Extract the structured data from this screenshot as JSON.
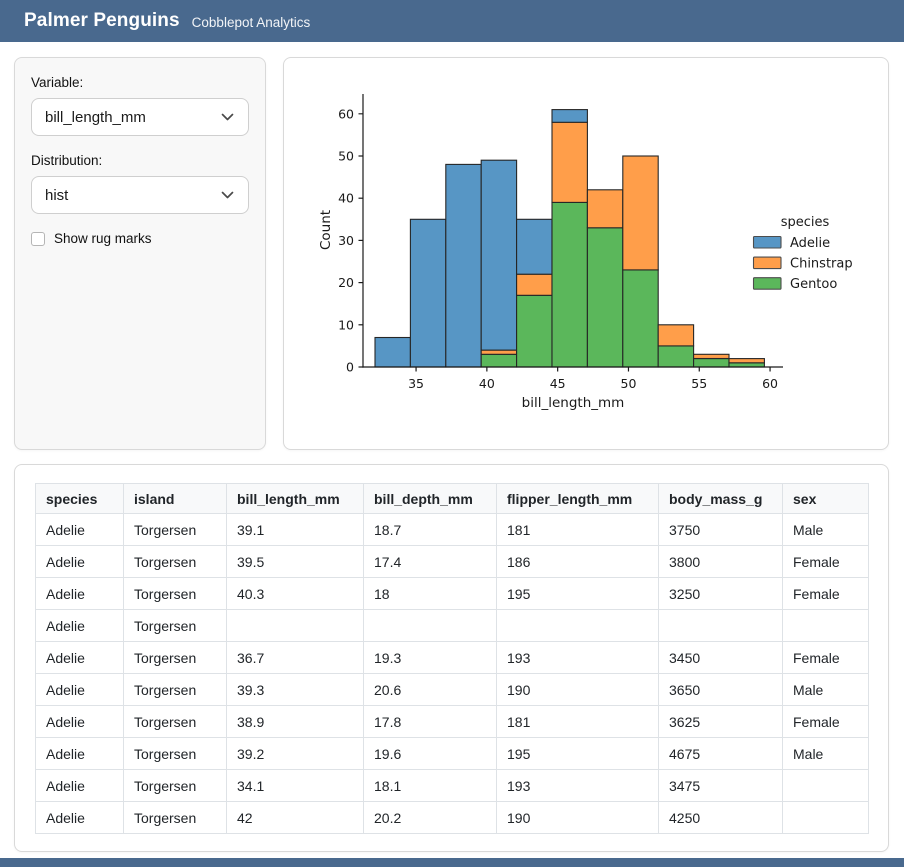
{
  "header": {
    "title": "Palmer Penguins",
    "subtitle": "Cobblepot Analytics"
  },
  "sidebar": {
    "variable": {
      "label": "Variable:",
      "value": "bill_length_mm"
    },
    "distribution": {
      "label": "Distribution:",
      "value": "hist"
    },
    "rug": {
      "label": "Show rug marks",
      "checked": false
    }
  },
  "chart_data": {
    "type": "bar",
    "subtype": "stacked-histogram",
    "xlabel": "bill_length_mm",
    "ylabel": "Count",
    "bins": {
      "start": 32.1,
      "width": 2.5,
      "count": 11
    },
    "x_ticks": [
      35,
      40,
      45,
      50,
      55,
      60
    ],
    "y_ticks": [
      0,
      10,
      20,
      30,
      40,
      50,
      60
    ],
    "ylim": [
      0,
      64.7
    ],
    "series": [
      {
        "name": "Gentoo",
        "color": "#5BB75B",
        "values": [
          0,
          0,
          0,
          3,
          17,
          39,
          33,
          23,
          5,
          2,
          1
        ]
      },
      {
        "name": "Chinstrap",
        "color": "#FF9E4A",
        "values": [
          0,
          0,
          0,
          1,
          5,
          19,
          9,
          27,
          5,
          1,
          1
        ]
      },
      {
        "name": "Adelie",
        "color": "#5796C5",
        "values": [
          7,
          35,
          48,
          45,
          13,
          3,
          0,
          0,
          0,
          0,
          0
        ]
      }
    ],
    "totals": [
      7,
      35,
      48,
      49,
      35,
      61,
      42,
      50,
      10,
      3,
      2
    ],
    "edge_color": "#262626",
    "legend": {
      "title": "species",
      "entries": [
        "Adelie",
        "Chinstrap",
        "Gentoo"
      ],
      "position": "right"
    },
    "grid": false
  },
  "table": {
    "columns": [
      "species",
      "island",
      "bill_length_mm",
      "bill_depth_mm",
      "flipper_length_mm",
      "body_mass_g",
      "sex"
    ],
    "rows": [
      [
        "Adelie",
        "Torgersen",
        "39.1",
        "18.7",
        "181",
        "3750",
        "Male"
      ],
      [
        "Adelie",
        "Torgersen",
        "39.5",
        "17.4",
        "186",
        "3800",
        "Female"
      ],
      [
        "Adelie",
        "Torgersen",
        "40.3",
        "18",
        "195",
        "3250",
        "Female"
      ],
      [
        "Adelie",
        "Torgersen",
        "",
        "",
        "",
        "",
        ""
      ],
      [
        "Adelie",
        "Torgersen",
        "36.7",
        "19.3",
        "193",
        "3450",
        "Female"
      ],
      [
        "Adelie",
        "Torgersen",
        "39.3",
        "20.6",
        "190",
        "3650",
        "Male"
      ],
      [
        "Adelie",
        "Torgersen",
        "38.9",
        "17.8",
        "181",
        "3625",
        "Female"
      ],
      [
        "Adelie",
        "Torgersen",
        "39.2",
        "19.6",
        "195",
        "4675",
        "Male"
      ],
      [
        "Adelie",
        "Torgersen",
        "34.1",
        "18.1",
        "193",
        "3475",
        ""
      ],
      [
        "Adelie",
        "Torgersen",
        "42",
        "20.2",
        "190",
        "4250",
        ""
      ]
    ]
  },
  "colors": {
    "header_bg": "#49698e",
    "card_border": "#d9d9d9",
    "sidebar_bg": "#f8f8f8",
    "table_border": "#dee2e6"
  }
}
